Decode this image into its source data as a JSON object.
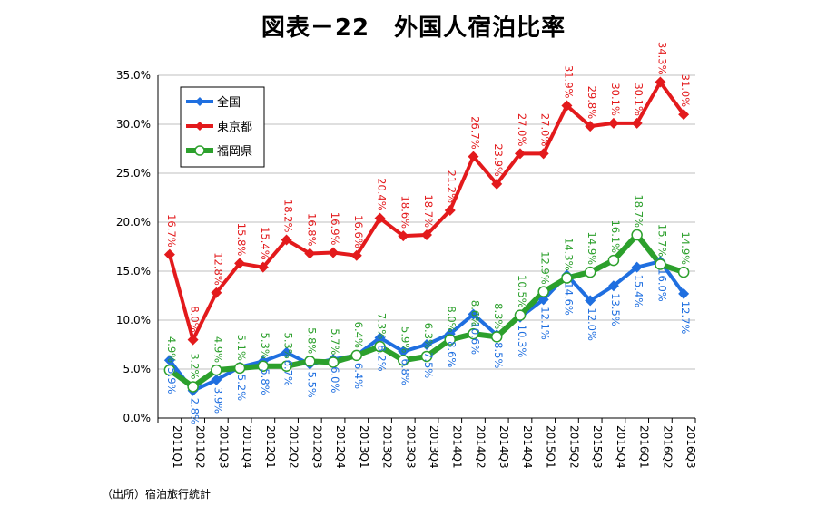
{
  "chart_data": {
    "type": "line",
    "title": "図表－22　外国人宿泊比率",
    "xlabel": "",
    "ylabel": "",
    "ylim": [
      0,
      35
    ],
    "y_ticks": [
      "0.0%",
      "5.0%",
      "10.0%",
      "15.0%",
      "20.0%",
      "25.0%",
      "30.0%",
      "35.0%"
    ],
    "grid": true,
    "legend_position": "top-left",
    "categories": [
      "2011Q1",
      "2011Q2",
      "2011Q3",
      "2011Q4",
      "2012Q1",
      "2012Q2",
      "2012Q3",
      "2012Q4",
      "2013Q1",
      "2013Q2",
      "2013Q3",
      "2013Q4",
      "2014Q1",
      "2014Q2",
      "2014Q3",
      "2014Q4",
      "2015Q1",
      "2015Q2",
      "2015Q3",
      "2015Q4",
      "2016Q1",
      "2016Q2",
      "2016Q3"
    ],
    "series": [
      {
        "name": "全国",
        "color": "#1f6fe0",
        "marker": "diamond",
        "values": [
          5.9,
          2.8,
          3.9,
          5.2,
          5.8,
          6.7,
          5.5,
          6.0,
          6.4,
          8.2,
          6.8,
          7.5,
          8.6,
          10.6,
          8.5,
          10.3,
          12.1,
          14.6,
          12.0,
          13.5,
          15.4,
          16.0,
          12.7
        ],
        "labels": [
          "5.9%",
          "2.8%",
          "3.9%",
          "5.2%",
          "5.8%",
          "6.7%",
          "5.5%",
          "6.0%",
          "6.4%",
          "8.2%",
          "6.8%",
          "7.5%",
          "8.6%",
          "10.6%",
          "8.5%",
          "10.3%",
          "12.1%",
          "14.6%",
          "12.0%",
          "13.5%",
          "15.4%",
          "16.0%",
          "12.7%"
        ]
      },
      {
        "name": "東京都",
        "color": "#e31a1c",
        "marker": "diamond",
        "values": [
          16.7,
          8.0,
          12.8,
          15.8,
          15.4,
          18.2,
          16.8,
          16.9,
          16.6,
          20.4,
          18.6,
          18.7,
          21.2,
          26.7,
          23.9,
          27.0,
          27.0,
          31.9,
          29.8,
          30.1,
          30.1,
          34.3,
          31.0
        ],
        "labels": [
          "16.7%",
          "8.0%",
          "12.8%",
          "15.8%",
          "15.4%",
          "18.2%",
          "16.8%",
          "16.9%",
          "16.6%",
          "20.4%",
          "18.6%",
          "18.7%",
          "21.2%",
          "26.7%",
          "23.9%",
          "27.0%",
          "27.0%",
          "31.9%",
          "29.8%",
          "30.1%",
          "30.1%",
          "34.3%",
          "31.0%"
        ]
      },
      {
        "name": "福岡県",
        "color": "#2ca02c",
        "marker": "circle",
        "values": [
          4.9,
          3.2,
          4.9,
          5.1,
          5.3,
          5.3,
          5.8,
          5.7,
          6.4,
          7.3,
          5.9,
          6.3,
          8.0,
          8.6,
          8.3,
          10.5,
          12.9,
          14.3,
          14.9,
          16.1,
          18.7,
          15.7,
          14.9
        ],
        "labels": [
          "4.9%",
          "3.2%",
          "4.9%",
          "5.1%",
          "5.3%",
          "5.3%",
          "5.8%",
          "5.7%",
          "6.4%",
          "7.3%",
          "5.9%",
          "6.3%",
          "8.0%",
          "8.6%",
          "8.3%",
          "10.5%",
          "12.9%",
          "14.3%",
          "14.9%",
          "16.1%",
          "18.7%",
          "15.7%",
          "14.9%"
        ]
      }
    ],
    "source": "（出所）宿泊旅行統計"
  }
}
